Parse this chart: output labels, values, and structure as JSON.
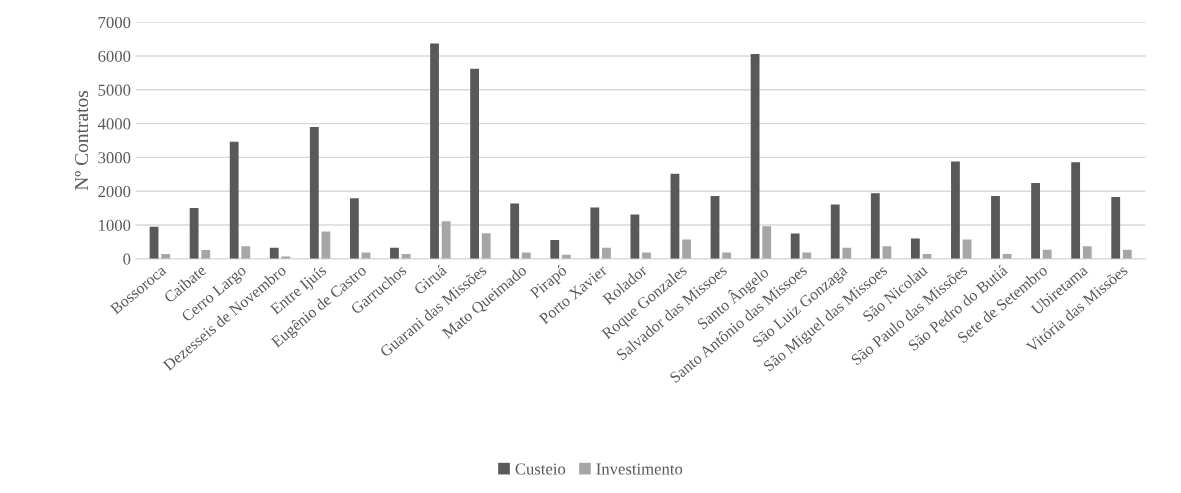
{
  "chart_data": {
    "type": "bar",
    "ylabel": "Nº Contratos",
    "categories": [
      "Bossoroca",
      "Caibate",
      "Cerro Largo",
      "Dezesseis de Novembro",
      "Entre Ijuís",
      "Eugênio de Castro",
      "Garruchos",
      "Giruá",
      "Guarani das Missões",
      "Mato Queimado",
      "Pirapó",
      "Porto Xavier",
      "Rolador",
      "Roque Gonzales",
      "Salvador das Missoes",
      "Santo Ângelo",
      "Santo Antônio das Missoes",
      "São Luiz Gonzaga",
      "São Miguel das Missoes",
      "São Nicolau",
      "São Paulo das Missões",
      "São Pedro do Butiá",
      "Sete de Setembro",
      "Ubiretama",
      "Vitória das Missões"
    ],
    "series": [
      {
        "name": "Custeio",
        "color": "#595959",
        "values": [
          950,
          1500,
          3460,
          330,
          3900,
          1790,
          330,
          6370,
          5620,
          1640,
          560,
          1520,
          1310,
          2520,
          1860,
          6060,
          750,
          1610,
          1940,
          600,
          2880,
          1860,
          2240,
          2860,
          1830
        ]
      },
      {
        "name": "Investimento",
        "color": "#a6a6a6",
        "values": [
          140,
          260,
          370,
          70,
          810,
          190,
          140,
          1110,
          760,
          190,
          120,
          330,
          190,
          570,
          190,
          960,
          190,
          330,
          370,
          140,
          570,
          140,
          270,
          370,
          270
        ]
      }
    ],
    "ylim": [
      0,
      7000
    ],
    "yticks": [
      0,
      1000,
      2000,
      3000,
      4000,
      5000,
      6000,
      7000
    ],
    "grid": "y",
    "legend": "bottom"
  }
}
